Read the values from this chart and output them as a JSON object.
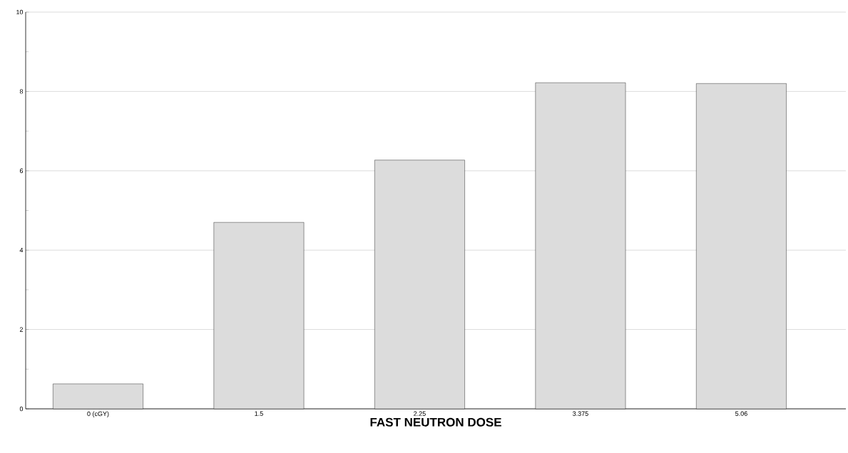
{
  "chart_data": {
    "type": "bar",
    "xlabel": "FAST NEUTRON DOSE",
    "categories": [
      "0 (cGY)",
      "1.5",
      "2.25",
      "3.375",
      "5.06"
    ],
    "values": [
      0.63,
      4.7,
      6.27,
      8.22,
      8.2
    ],
    "color": "#dcdcdc",
    "ylim": [
      0,
      10
    ],
    "yticks": [
      0,
      {
        "value": 1,
        "label": null
      },
      2,
      {
        "value": 3,
        "label": null
      },
      4,
      {
        "value": 5,
        "label": null
      },
      6,
      {
        "value": 7,
        "label": null
      },
      8,
      {
        "value": 9,
        "label": null
      },
      10
    ],
    "grid": "y"
  }
}
